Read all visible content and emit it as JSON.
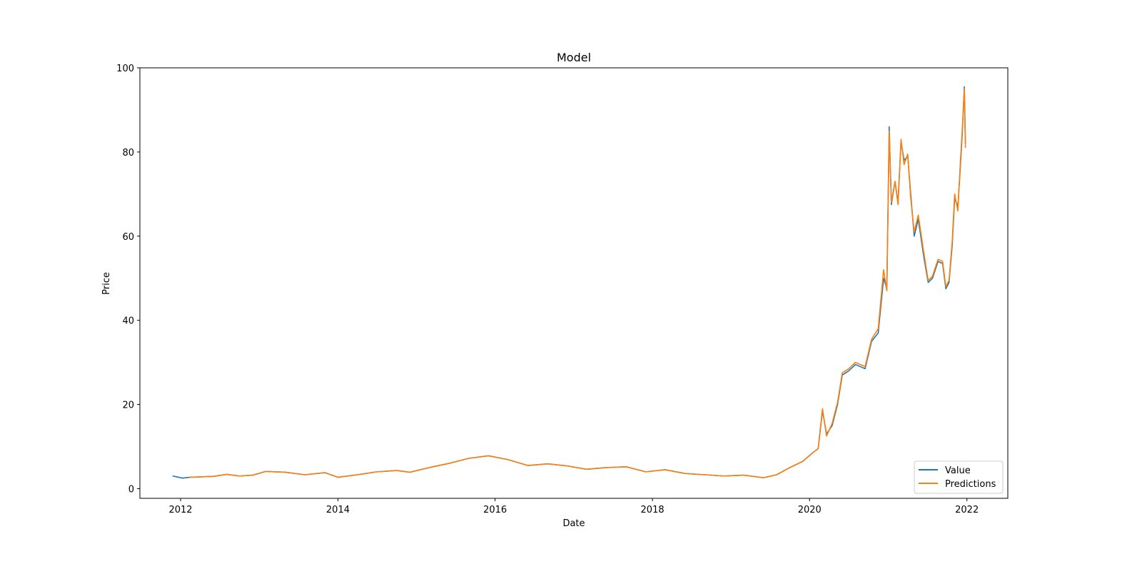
{
  "chart_data": {
    "type": "line",
    "title": "Model",
    "xlabel": "Date",
    "ylabel": "Price",
    "xlim": [
      "2011-06-26",
      "2022-07-10"
    ],
    "ylim": [
      -2.3,
      100
    ],
    "xticks": [
      {
        "value": "2012-01-01",
        "label": "2012"
      },
      {
        "value": "2014-01-01",
        "label": "2014"
      },
      {
        "value": "2016-01-01",
        "label": "2016"
      },
      {
        "value": "2018-01-01",
        "label": "2018"
      },
      {
        "value": "2020-01-01",
        "label": "2020"
      },
      {
        "value": "2022-01-01",
        "label": "2022"
      }
    ],
    "yticks": [
      0,
      20,
      40,
      60,
      80,
      100
    ],
    "grid": false,
    "legend": {
      "placement": "lower-right",
      "entries": [
        "Value",
        "Predictions"
      ]
    },
    "series": [
      {
        "name": "Value",
        "color": "#1f77b4",
        "points": [
          [
            "2011-11-25",
            3.0
          ],
          [
            "2011-12-15",
            2.8
          ],
          [
            "2012-01-10",
            2.5
          ],
          [
            "2012-02-10",
            2.7
          ],
          [
            "2012-04-01",
            2.8
          ],
          [
            "2012-06-01",
            2.9
          ],
          [
            "2012-08-01",
            3.4
          ],
          [
            "2012-10-01",
            3.0
          ],
          [
            "2012-12-01",
            3.2
          ],
          [
            "2013-02-01",
            4.1
          ],
          [
            "2013-05-01",
            3.9
          ],
          [
            "2013-08-01",
            3.3
          ],
          [
            "2013-11-01",
            3.8
          ],
          [
            "2014-01-01",
            2.7
          ],
          [
            "2014-04-01",
            3.3
          ],
          [
            "2014-07-01",
            4.0
          ],
          [
            "2014-10-01",
            4.3
          ],
          [
            "2014-12-01",
            3.9
          ],
          [
            "2015-03-01",
            5.0
          ],
          [
            "2015-06-01",
            6.0
          ],
          [
            "2015-09-01",
            7.2
          ],
          [
            "2015-12-01",
            7.8
          ],
          [
            "2016-03-01",
            6.9
          ],
          [
            "2016-06-01",
            5.5
          ],
          [
            "2016-09-01",
            5.9
          ],
          [
            "2016-12-01",
            5.4
          ],
          [
            "2017-03-01",
            4.6
          ],
          [
            "2017-06-01",
            5.0
          ],
          [
            "2017-09-01",
            5.2
          ],
          [
            "2017-12-01",
            4.0
          ],
          [
            "2018-03-01",
            4.5
          ],
          [
            "2018-06-01",
            3.6
          ],
          [
            "2018-09-01",
            3.3
          ],
          [
            "2018-12-01",
            3.0
          ],
          [
            "2019-03-01",
            3.2
          ],
          [
            "2019-06-01",
            2.6
          ],
          [
            "2019-08-01",
            3.3
          ],
          [
            "2019-10-01",
            5.0
          ],
          [
            "2019-12-01",
            6.5
          ],
          [
            "2020-01-15",
            8.5
          ],
          [
            "2020-02-10",
            9.5
          ],
          [
            "2020-03-01",
            18.5
          ],
          [
            "2020-03-20",
            13.0
          ],
          [
            "2020-04-15",
            15.0
          ],
          [
            "2020-05-10",
            20.0
          ],
          [
            "2020-06-01",
            27.0
          ],
          [
            "2020-07-01",
            28.0
          ],
          [
            "2020-08-01",
            29.5
          ],
          [
            "2020-09-15",
            28.5
          ],
          [
            "2020-10-15",
            35.0
          ],
          [
            "2020-11-15",
            37.0
          ],
          [
            "2020-12-10",
            50.0
          ],
          [
            "2020-12-25",
            47.5
          ],
          [
            "2021-01-05",
            86.0
          ],
          [
            "2021-01-15",
            67.5
          ],
          [
            "2021-02-01",
            73.0
          ],
          [
            "2021-02-15",
            68.0
          ],
          [
            "2021-03-01",
            82.5
          ],
          [
            "2021-03-15",
            78.0
          ],
          [
            "2021-04-01",
            79.0
          ],
          [
            "2021-04-15",
            70.0
          ],
          [
            "2021-05-01",
            60.0
          ],
          [
            "2021-05-20",
            64.0
          ],
          [
            "2021-06-15",
            55.0
          ],
          [
            "2021-07-05",
            49.0
          ],
          [
            "2021-07-25",
            50.0
          ],
          [
            "2021-08-20",
            54.0
          ],
          [
            "2021-09-10",
            53.5
          ],
          [
            "2021-09-25",
            47.5
          ],
          [
            "2021-10-10",
            49.0
          ],
          [
            "2021-10-25",
            58.0
          ],
          [
            "2021-11-05",
            69.0
          ],
          [
            "2021-11-20",
            67.0
          ],
          [
            "2021-12-01",
            76.0
          ],
          [
            "2021-12-10",
            84.0
          ],
          [
            "2021-12-20",
            95.5
          ],
          [
            "2021-12-25",
            82.0
          ]
        ]
      },
      {
        "name": "Predictions",
        "color": "#ff7f0e",
        "points": [
          [
            "2012-02-10",
            2.7
          ],
          [
            "2012-04-01",
            2.8
          ],
          [
            "2012-06-01",
            2.9
          ],
          [
            "2012-08-01",
            3.4
          ],
          [
            "2012-10-01",
            3.0
          ],
          [
            "2012-12-01",
            3.2
          ],
          [
            "2013-02-01",
            4.1
          ],
          [
            "2013-05-01",
            3.9
          ],
          [
            "2013-08-01",
            3.3
          ],
          [
            "2013-11-01",
            3.8
          ],
          [
            "2014-01-01",
            2.7
          ],
          [
            "2014-04-01",
            3.3
          ],
          [
            "2014-07-01",
            4.0
          ],
          [
            "2014-10-01",
            4.3
          ],
          [
            "2014-12-01",
            3.9
          ],
          [
            "2015-03-01",
            5.0
          ],
          [
            "2015-06-01",
            6.0
          ],
          [
            "2015-09-01",
            7.2
          ],
          [
            "2015-12-01",
            7.8
          ],
          [
            "2016-03-01",
            6.9
          ],
          [
            "2016-06-01",
            5.5
          ],
          [
            "2016-09-01",
            5.9
          ],
          [
            "2016-12-01",
            5.4
          ],
          [
            "2017-03-01",
            4.6
          ],
          [
            "2017-06-01",
            5.0
          ],
          [
            "2017-09-01",
            5.2
          ],
          [
            "2017-12-01",
            4.0
          ],
          [
            "2018-03-01",
            4.5
          ],
          [
            "2018-06-01",
            3.6
          ],
          [
            "2018-09-01",
            3.3
          ],
          [
            "2018-12-01",
            3.0
          ],
          [
            "2019-03-01",
            3.2
          ],
          [
            "2019-06-01",
            2.6
          ],
          [
            "2019-08-01",
            3.3
          ],
          [
            "2019-10-01",
            5.0
          ],
          [
            "2019-12-01",
            6.5
          ],
          [
            "2020-01-15",
            8.5
          ],
          [
            "2020-02-10",
            9.5
          ],
          [
            "2020-03-01",
            19.0
          ],
          [
            "2020-03-20",
            12.5
          ],
          [
            "2020-04-15",
            15.5
          ],
          [
            "2020-05-10",
            20.5
          ],
          [
            "2020-06-01",
            27.5
          ],
          [
            "2020-07-01",
            28.5
          ],
          [
            "2020-08-01",
            30.0
          ],
          [
            "2020-09-15",
            29.0
          ],
          [
            "2020-10-15",
            35.5
          ],
          [
            "2020-11-15",
            38.0
          ],
          [
            "2020-12-10",
            52.0
          ],
          [
            "2020-12-25",
            47.0
          ],
          [
            "2021-01-05",
            85.0
          ],
          [
            "2021-01-15",
            68.0
          ],
          [
            "2021-02-01",
            73.0
          ],
          [
            "2021-02-15",
            67.5
          ],
          [
            "2021-03-01",
            83.0
          ],
          [
            "2021-03-15",
            77.0
          ],
          [
            "2021-04-01",
            79.5
          ],
          [
            "2021-04-15",
            69.0
          ],
          [
            "2021-05-01",
            61.0
          ],
          [
            "2021-05-20",
            65.0
          ],
          [
            "2021-06-15",
            56.0
          ],
          [
            "2021-07-05",
            49.5
          ],
          [
            "2021-07-25",
            50.5
          ],
          [
            "2021-08-20",
            54.5
          ],
          [
            "2021-09-10",
            54.0
          ],
          [
            "2021-09-25",
            48.0
          ],
          [
            "2021-10-10",
            49.5
          ],
          [
            "2021-10-25",
            59.0
          ],
          [
            "2021-11-05",
            70.0
          ],
          [
            "2021-11-20",
            66.0
          ],
          [
            "2021-12-01",
            77.0
          ],
          [
            "2021-12-10",
            85.0
          ],
          [
            "2021-12-20",
            95.0
          ],
          [
            "2021-12-25",
            81.0
          ]
        ]
      }
    ]
  }
}
